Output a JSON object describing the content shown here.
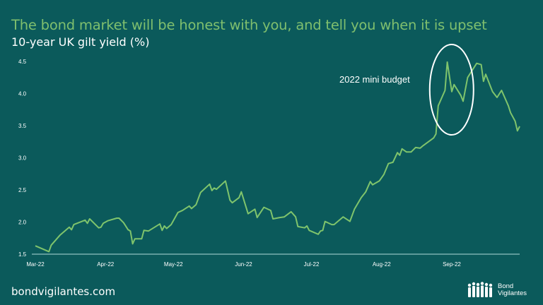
{
  "header": {
    "title": "The bond market will be honest with you, and tell you when it is upset",
    "subtitle": "10-year UK gilt yield (%)"
  },
  "footer": {
    "site": "bondvigilantes.com",
    "logo_text_line1": "Bond",
    "logo_text_line2": "Vigilantes"
  },
  "colors": {
    "background": "#0b5a5b",
    "title": "#7fbf6e",
    "line": "#7fc46c",
    "annotation": "#ffffff",
    "axis": "#8fc0bf"
  },
  "chart_data": {
    "type": "line",
    "title": "10-year UK gilt yield (%)",
    "xlabel": "",
    "ylabel": "",
    "ylim": [
      1.5,
      4.5
    ],
    "xlim": [
      "2022-03-01",
      "2022-10-01"
    ],
    "yticks": [
      "1.5",
      "2.0",
      "2.5",
      "3.0",
      "3.5",
      "4.0",
      "4.5"
    ],
    "xticks": [
      {
        "label": "Mar-22",
        "date": "2022-03-01"
      },
      {
        "label": "Apr-22",
        "date": "2022-04-01"
      },
      {
        "label": "May-22",
        "date": "2022-05-01"
      },
      {
        "label": "Jun-22",
        "date": "2022-06-01"
      },
      {
        "label": "Jul-22",
        "date": "2022-07-01"
      },
      {
        "label": "Aug-22",
        "date": "2022-08-01"
      },
      {
        "label": "Sep-22",
        "date": "2022-09-01"
      }
    ],
    "grid": false,
    "annotation": {
      "text": "2022 mini budget",
      "shape": "ellipse",
      "target_date": "2022-08-31"
    },
    "series": [
      {
        "x": [
          "2022-03-01",
          "2022-03-03",
          "2022-03-07",
          "2022-03-08",
          "2022-03-12",
          "2022-03-16",
          "2022-03-17",
          "2022-03-18",
          "2022-03-23",
          "2022-03-24",
          "2022-03-25",
          "2022-03-29",
          "2022-03-30",
          "2022-03-31",
          "2022-04-02",
          "2022-04-06",
          "2022-04-07",
          "2022-04-09",
          "2022-04-11",
          "2022-04-12",
          "2022-04-13",
          "2022-04-14",
          "2022-04-17",
          "2022-04-18",
          "2022-04-20",
          "2022-04-25",
          "2022-04-26",
          "2022-04-27",
          "2022-04-28",
          "2022-04-30",
          "2022-05-03",
          "2022-05-05",
          "2022-05-08",
          "2022-05-09",
          "2022-05-11",
          "2022-05-13",
          "2022-05-17",
          "2022-05-18",
          "2022-05-19",
          "2022-05-20",
          "2022-05-24",
          "2022-05-26",
          "2022-05-27",
          "2022-05-30",
          "2022-05-31",
          "2022-06-03",
          "2022-06-06",
          "2022-06-07",
          "2022-06-10",
          "2022-06-13",
          "2022-06-14",
          "2022-06-17",
          "2022-06-19",
          "2022-06-22",
          "2022-06-24",
          "2022-06-25",
          "2022-06-28",
          "2022-06-29",
          "2022-06-30",
          "2022-07-04",
          "2022-07-05",
          "2022-07-06",
          "2022-07-07",
          "2022-07-10",
          "2022-07-11",
          "2022-07-15",
          "2022-07-18",
          "2022-07-20",
          "2022-07-23",
          "2022-07-25",
          "2022-07-27",
          "2022-07-28",
          "2022-07-31",
          "2022-08-02",
          "2022-08-04",
          "2022-08-06",
          "2022-08-08",
          "2022-08-09",
          "2022-08-10",
          "2022-08-12",
          "2022-08-14",
          "2022-08-16",
          "2022-08-18",
          "2022-08-19",
          "2022-08-24",
          "2022-08-25",
          "2022-08-26",
          "2022-08-29",
          "2022-08-30",
          "2022-09-01",
          "2022-09-02",
          "2022-09-05",
          "2022-09-06",
          "2022-09-08",
          "2022-09-12",
          "2022-09-14",
          "2022-09-15",
          "2022-09-16",
          "2022-09-19",
          "2022-09-21",
          "2022-09-23",
          "2022-09-26",
          "2022-09-27",
          "2022-09-29",
          "2022-09-30",
          "2022-10-01"
        ],
        "values": [
          1.63,
          1.6,
          1.54,
          1.64,
          1.8,
          1.92,
          1.88,
          1.96,
          2.03,
          1.98,
          2.05,
          1.91,
          1.92,
          1.98,
          2.02,
          2.06,
          2.06,
          1.99,
          1.88,
          1.86,
          1.66,
          1.74,
          1.74,
          1.87,
          1.86,
          1.97,
          1.87,
          1.94,
          1.9,
          1.96,
          2.15,
          2.18,
          2.25,
          2.21,
          2.27,
          2.46,
          2.59,
          2.49,
          2.53,
          2.51,
          2.64,
          2.34,
          2.3,
          2.38,
          2.47,
          2.13,
          2.2,
          2.07,
          2.23,
          2.18,
          2.05,
          2.07,
          2.08,
          2.16,
          2.08,
          1.93,
          1.91,
          1.94,
          1.87,
          1.81,
          1.86,
          1.87,
          2.01,
          1.96,
          1.96,
          2.08,
          2.01,
          2.2,
          2.38,
          2.47,
          2.63,
          2.58,
          2.64,
          2.74,
          2.91,
          2.93,
          3.08,
          3.04,
          3.14,
          3.09,
          3.09,
          3.16,
          3.15,
          3.18,
          3.31,
          3.37,
          3.81,
          4.05,
          4.49,
          4.03,
          4.14,
          3.97,
          3.88,
          4.25,
          4.47,
          4.45,
          4.19,
          4.3,
          4.03,
          3.94,
          4.05,
          3.81,
          3.7,
          3.57,
          3.42,
          3.49
        ]
      }
    ]
  }
}
